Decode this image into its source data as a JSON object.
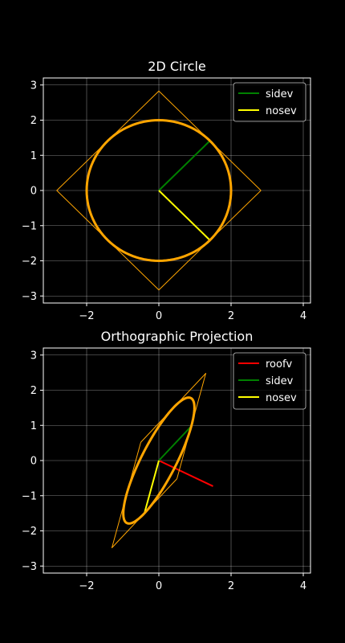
{
  "colors": {
    "background": "#000000",
    "foreground": "#ffffff",
    "orange": "#ffa500",
    "green": "#008000",
    "yellow": "#ffff00",
    "red": "#ff0000"
  },
  "chart_data": [
    {
      "type": "line",
      "title": "2D Circle",
      "xlim": [
        -3.2,
        4.2
      ],
      "ylim": [
        -3.2,
        3.2
      ],
      "xticks": [
        -2,
        0,
        2,
        4
      ],
      "yticks": [
        -3,
        -2,
        -1,
        0,
        1,
        2,
        3
      ],
      "xtick_labels": [
        "−2",
        "0",
        "2",
        "4"
      ],
      "ytick_labels": [
        "−3",
        "−2",
        "−1",
        "0",
        "1",
        "2",
        "3"
      ],
      "grid": true,
      "legend_position": "top-right",
      "series": [
        {
          "name": "sidev",
          "color": "#008000",
          "x": [
            0,
            1.414
          ],
          "y": [
            0,
            1.414
          ],
          "in_legend": true
        },
        {
          "name": "nosev",
          "color": "#ffff00",
          "x": [
            0,
            1.414
          ],
          "y": [
            0,
            -1.414
          ],
          "in_legend": true
        },
        {
          "color": "#ffa500",
          "kind": "square",
          "x": [
            2.828,
            0,
            -2.828,
            0,
            2.828
          ],
          "y": [
            0,
            2.828,
            0,
            -2.828,
            0
          ],
          "in_legend": false
        },
        {
          "color": "#ffa500",
          "kind": "ellipse",
          "center": [
            0,
            0
          ],
          "u": [
            1.414,
            1.414
          ],
          "v": [
            1.414,
            -1.414
          ],
          "in_legend": false
        }
      ]
    },
    {
      "type": "line",
      "title": "Orthographic Projection",
      "xlim": [
        -3.2,
        4.2
      ],
      "ylim": [
        -3.2,
        3.2
      ],
      "xticks": [
        -2,
        0,
        2,
        4
      ],
      "yticks": [
        -3,
        -2,
        -1,
        0,
        1,
        2,
        3
      ],
      "xtick_labels": [
        "−2",
        "0",
        "2",
        "4"
      ],
      "ytick_labels": [
        "−3",
        "−2",
        "−1",
        "0",
        "1",
        "2",
        "3"
      ],
      "grid": true,
      "legend_position": "top-right",
      "series": [
        {
          "name": "roofv",
          "color": "#ff0000",
          "x": [
            0,
            1.5
          ],
          "y": [
            0,
            -0.73
          ],
          "in_legend": true
        },
        {
          "name": "sidev",
          "color": "#008000",
          "x": [
            0,
            0.9
          ],
          "y": [
            0,
            0.98
          ],
          "in_legend": true
        },
        {
          "name": "nosev",
          "color": "#ffff00",
          "x": [
            0,
            -0.4
          ],
          "y": [
            0,
            -1.5
          ],
          "in_legend": true
        },
        {
          "color": "#ffa500",
          "kind": "parallelogram",
          "x": [
            0.5,
            1.3,
            -0.5,
            -1.3,
            0.5
          ],
          "y": [
            -0.52,
            2.48,
            0.52,
            -2.48,
            -0.52
          ],
          "in_legend": false
        },
        {
          "color": "#ffa500",
          "kind": "ellipse",
          "center": [
            0,
            0
          ],
          "u": [
            0.9,
            0.98
          ],
          "v": [
            -0.4,
            -1.5
          ],
          "in_legend": false
        }
      ]
    }
  ]
}
